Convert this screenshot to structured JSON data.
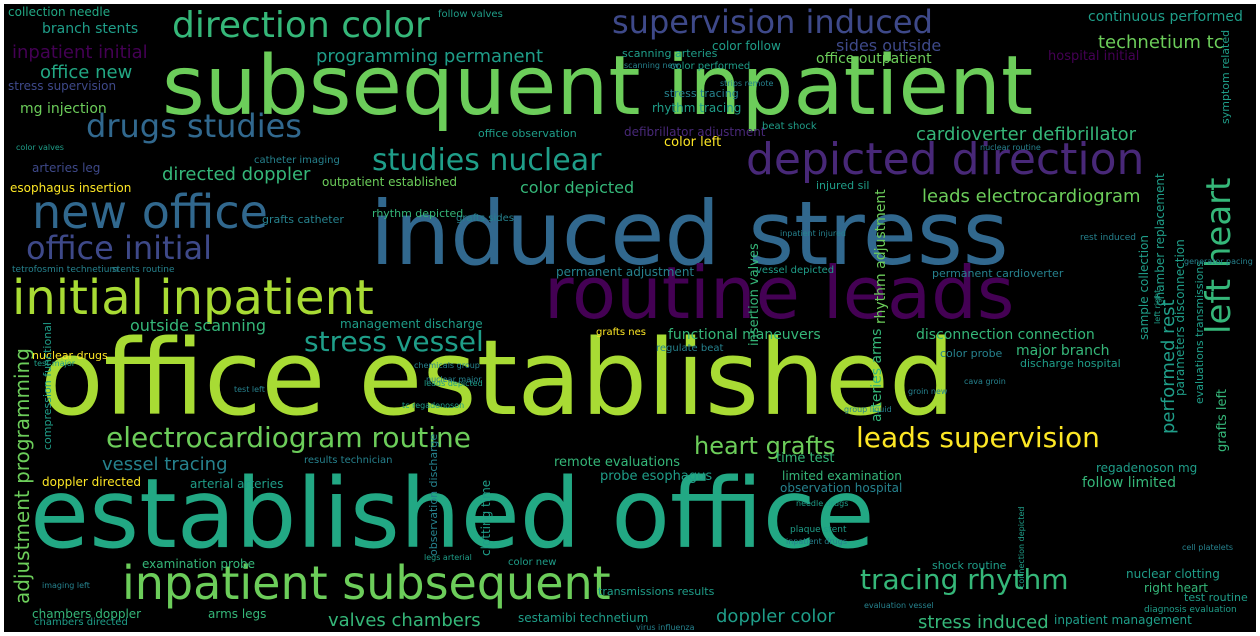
{
  "title": "",
  "palette": {
    "background": "#000000",
    "green": "#6ccd5a",
    "lime": "#a8db34",
    "yellow": "#fde725",
    "teal": "#22a884",
    "seagreen": "#35b779",
    "cyan": "#1f9e89",
    "tealblue": "#26828e",
    "blue": "#31688e",
    "steel": "#3e4989",
    "purple": "#482878",
    "darkpurple": "#440154"
  },
  "words": [
    {
      "id": "office-established",
      "text": "office established"
    },
    {
      "id": "established-office",
      "text": "established office"
    },
    {
      "id": "subsequent-inpatient",
      "text": "subsequent inpatient"
    },
    {
      "id": "induced-stress",
      "text": "induced stress"
    },
    {
      "id": "routine-leads",
      "text": "routine leads"
    },
    {
      "id": "inpatient-subsequent",
      "text": "inpatient subsequent"
    },
    {
      "id": "initial-inpatient",
      "text": "initial inpatient"
    },
    {
      "id": "new-office",
      "text": "new office"
    },
    {
      "id": "depicted-direction",
      "text": "depicted direction"
    },
    {
      "id": "direction-color",
      "text": "direction color"
    },
    {
      "id": "supervision-induced",
      "text": "supervision induced"
    },
    {
      "id": "drugs-studies",
      "text": "drugs studies"
    },
    {
      "id": "office-initial",
      "text": "office initial"
    },
    {
      "id": "electrocardiogram-routine",
      "text": "electrocardiogram routine"
    },
    {
      "id": "leads-supervision",
      "text": "leads supervision"
    },
    {
      "id": "studies-nuclear",
      "text": "studies nuclear"
    },
    {
      "id": "stress-vessel",
      "text": "stress vessel"
    },
    {
      "id": "tracing-rhythm",
      "text": "tracing rhythm"
    },
    {
      "id": "heart-grafts",
      "text": "heart grafts"
    },
    {
      "id": "left-heart",
      "text": "left heart"
    },
    {
      "id": "programming-permanent",
      "text": "programming permanent"
    },
    {
      "id": "cardioverter-defibrillator",
      "text": "cardioverter defibrillator"
    },
    {
      "id": "leads-electrocardiogram",
      "text": "leads electrocardiogram"
    },
    {
      "id": "technetium-tc",
      "text": "technetium tc"
    },
    {
      "id": "office-new",
      "text": "office new"
    },
    {
      "id": "inpatient-initial",
      "text": "inpatient initial"
    },
    {
      "id": "directed-doppler",
      "text": "directed doppler"
    },
    {
      "id": "outside-scanning",
      "text": "outside scanning"
    },
    {
      "id": "color-depicted",
      "text": "color depicted"
    },
    {
      "id": "sides-outside",
      "text": "sides outside"
    },
    {
      "id": "office-outpatient",
      "text": "office outpatient"
    },
    {
      "id": "adjustment-programming",
      "text": "adjustment programming"
    },
    {
      "id": "vessel-tracing",
      "text": "vessel tracing"
    },
    {
      "id": "valves-chambers",
      "text": "valves chambers"
    },
    {
      "id": "doppler-color",
      "text": "doppler color"
    },
    {
      "id": "stress-induced",
      "text": "stress induced"
    },
    {
      "id": "performed-rest",
      "text": "performed rest"
    },
    {
      "id": "continuous-performed",
      "text": "continuous performed"
    },
    {
      "id": "branch-stents",
      "text": "branch stents"
    },
    {
      "id": "collection-needle",
      "text": "collection needle"
    },
    {
      "id": "stress-supervision",
      "text": "stress supervision"
    },
    {
      "id": "mg-injection",
      "text": "mg injection"
    },
    {
      "id": "arteries-leg",
      "text": "arteries leg"
    },
    {
      "id": "esophagus-insertion",
      "text": "esophagus insertion"
    },
    {
      "id": "outpatient-established",
      "text": "outpatient established"
    },
    {
      "id": "rhythm-depicted",
      "text": "rhythm depicted"
    },
    {
      "id": "defibrillator-adjustment",
      "text": "defibrillator adjustment"
    },
    {
      "id": "office-observation",
      "text": "office observation"
    },
    {
      "id": "color-left",
      "text": "color left"
    },
    {
      "id": "beat-shock",
      "text": "beat shock"
    },
    {
      "id": "rhythm-tracing",
      "text": "rhythm tracing"
    },
    {
      "id": "stress-tracing",
      "text": "stress tracing"
    },
    {
      "id": "color-follow",
      "text": "color follow"
    },
    {
      "id": "color-performed",
      "text": "color performed"
    },
    {
      "id": "hospital-initial",
      "text": "hospital initial"
    },
    {
      "id": "disconnection-connection",
      "text": "disconnection connection"
    },
    {
      "id": "major-branch",
      "text": "major branch"
    },
    {
      "id": "management-discharge",
      "text": "management discharge"
    },
    {
      "id": "functional-maneuvers",
      "text": "functional maneuvers"
    },
    {
      "id": "permanent-adjustment",
      "text": "permanent adjustment"
    },
    {
      "id": "permanent-cardioverter",
      "text": "permanent cardioverter"
    },
    {
      "id": "remote-evaluations",
      "text": "remote evaluations"
    },
    {
      "id": "time-test",
      "text": "time test"
    },
    {
      "id": "regadenoson-mg",
      "text": "regadenoson mg"
    },
    {
      "id": "follow-limited",
      "text": "follow limited"
    },
    {
      "id": "limited-examination",
      "text": "limited examination"
    },
    {
      "id": "observation-hospital",
      "text": "observation hospital"
    },
    {
      "id": "probe-esophagus",
      "text": "probe esophagus"
    },
    {
      "id": "doppler-directed",
      "text": "doppler directed"
    },
    {
      "id": "arterial-arteries",
      "text": "arterial arteries"
    },
    {
      "id": "examination-probe",
      "text": "examination probe"
    },
    {
      "id": "chambers-doppler",
      "text": "chambers doppler"
    },
    {
      "id": "arms-legs",
      "text": "arms legs"
    },
    {
      "id": "sestamibi-technetium",
      "text": "sestamibi technetium"
    },
    {
      "id": "inpatient-management",
      "text": "inpatient management"
    },
    {
      "id": "transmissions-results",
      "text": "transmissions results"
    },
    {
      "id": "shock-routine",
      "text": "shock routine"
    },
    {
      "id": "nuclear-clotting",
      "text": "nuclear clotting"
    },
    {
      "id": "right-heart",
      "text": "right heart"
    },
    {
      "id": "test-routine",
      "text": "test routine"
    },
    {
      "id": "grafts-catheter",
      "text": "grafts catheter"
    },
    {
      "id": "grafts-sides",
      "text": "grafts sides"
    },
    {
      "id": "nuclear-drugs",
      "text": "nuclear drugs"
    },
    {
      "id": "grafts-nes",
      "text": "grafts nes"
    },
    {
      "id": "color-probe",
      "text": "color probe"
    },
    {
      "id": "discharge-hospital",
      "text": "discharge hospital"
    },
    {
      "id": "results-technician",
      "text": "results technician"
    },
    {
      "id": "regulate-beat",
      "text": "regulate beat"
    },
    {
      "id": "color-new",
      "text": "color new"
    },
    {
      "id": "catheter-imaging",
      "text": "catheter imaging"
    },
    {
      "id": "injured-sil",
      "text": "injured sil"
    },
    {
      "id": "chambers-directed",
      "text": "chambers directed"
    },
    {
      "id": "rhythm-adjustment",
      "text": "rhythm adjustment"
    },
    {
      "id": "arteries-arms",
      "text": "arteries arms"
    },
    {
      "id": "insertion-valves",
      "text": "insertion valves"
    },
    {
      "id": "sample-collection",
      "text": "sample collection"
    },
    {
      "id": "chamber-replacement",
      "text": "chamber replacement"
    },
    {
      "id": "grafts-left",
      "text": "grafts left"
    },
    {
      "id": "parameters-disconnection",
      "text": "parameters disconnection"
    },
    {
      "id": "evaluations-transmissions",
      "text": "evaluations transmissions"
    },
    {
      "id": "compression-functional",
      "text": "compression functional"
    },
    {
      "id": "observation-discharge",
      "text": "observation discharge"
    },
    {
      "id": "clotting-time",
      "text": "clotting time"
    },
    {
      "id": "symptom-related",
      "text": "symptom related"
    },
    {
      "id": "scanning-arteries",
      "text": "scanning arteries"
    },
    {
      "id": "tetrofosmin-technetium",
      "text": "tetrofosmin technetium"
    },
    {
      "id": "stents-routine",
      "text": "stents routine"
    },
    {
      "id": "leads-depicted",
      "text": "leads depicted"
    },
    {
      "id": "tc-regadenoson",
      "text": "tc regadenoson"
    },
    {
      "id": "vessel-depicted",
      "text": "vessel depicted"
    },
    {
      "id": "plaque-stent",
      "text": "plaque stent"
    },
    {
      "id": "needle-drugs",
      "text": "needle drugs"
    },
    {
      "id": "test-major",
      "text": "test major"
    },
    {
      "id": "legs-arterial",
      "text": "legs arterial"
    },
    {
      "id": "follow-valves",
      "text": "follow valves"
    },
    {
      "id": "color-valves",
      "text": "color valves"
    },
    {
      "id": "imaging-left",
      "text": "imaging left"
    },
    {
      "id": "nuclear-major",
      "text": "nuclear major"
    },
    {
      "id": "left-right",
      "text": "left right"
    },
    {
      "id": "nuclear-routine",
      "text": "nuclear routine"
    },
    {
      "id": "inpatient-drugs",
      "text": "inpatient drugs"
    },
    {
      "id": "inpatient-injured",
      "text": "inpatient injured"
    },
    {
      "id": "connection-depicted",
      "text": "connection depicted"
    },
    {
      "id": "chemicals-group",
      "text": "chemicals group"
    },
    {
      "id": "scanning-new",
      "text": "scanning new"
    },
    {
      "id": "strips-remote",
      "text": "strips remote"
    },
    {
      "id": "cava-groin",
      "text": "cava groin"
    },
    {
      "id": "groin-new",
      "text": "groin new"
    },
    {
      "id": "test-left",
      "text": "test left"
    },
    {
      "id": "rest-induced",
      "text": "rest induced"
    },
    {
      "id": "diagnosis-evaluation",
      "text": "diagnosis evaluation"
    },
    {
      "id": "virus-influenza",
      "text": "virus influenza"
    },
    {
      "id": "cell-platelets",
      "text": "cell platelets"
    },
    {
      "id": "group-liquid",
      "text": "group liquid"
    },
    {
      "id": "evaluation-vessel",
      "text": "evaluation vessel"
    },
    {
      "id": "generator-pacing",
      "text": "generator pacing"
    }
  ]
}
